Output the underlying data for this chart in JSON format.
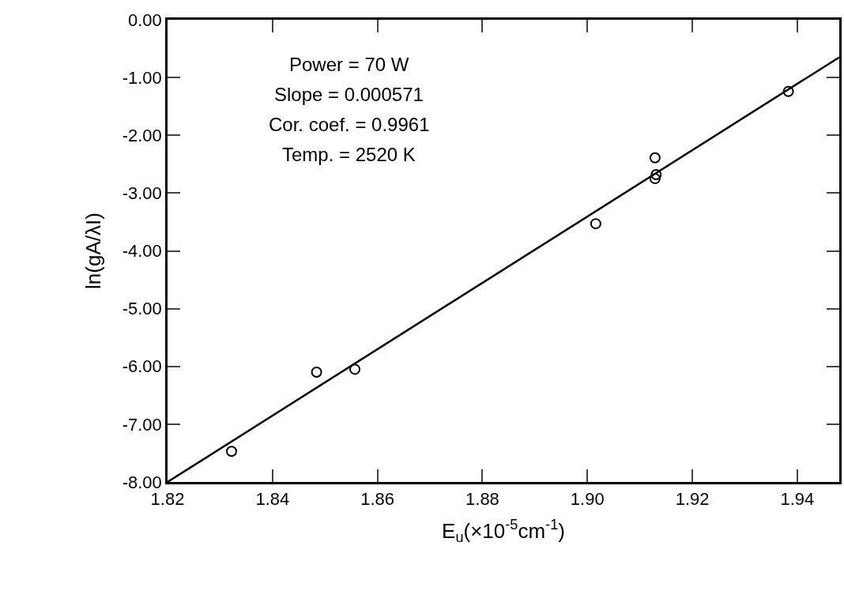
{
  "chart_data": {
    "type": "scatter",
    "xlabel": "E$_{u}$(×10$^{-5}$cm$^{-1}$)",
    "ylabel": "ln(gA/λI)",
    "annotations": [
      "Power = 70 W",
      "Slope = 0.000571",
      "Cor. coef. = 0.9961",
      "Temp. = 2520 K"
    ],
    "xlim": [
      1.82,
      1.948
    ],
    "xticks": [
      {
        "value": 1.82,
        "label": "1.82"
      },
      {
        "value": 1.84,
        "label": "1.84"
      },
      {
        "value": 1.86,
        "label": "1.86"
      },
      {
        "value": 1.88,
        "label": "1.88"
      },
      {
        "value": 1.9,
        "label": "1.90"
      },
      {
        "value": 1.92,
        "label": "1.92"
      },
      {
        "value": 1.94,
        "label": "1.94"
      }
    ],
    "ylim": [
      -8,
      0
    ],
    "yticks": [
      {
        "value": 0,
        "label": "0.00"
      },
      {
        "value": -1,
        "label": "-1.00"
      },
      {
        "value": -2,
        "label": "-2.00"
      },
      {
        "value": -3,
        "label": "-3.00"
      },
      {
        "value": -4,
        "label": "-4.00"
      },
      {
        "value": -5,
        "label": "-5.00"
      },
      {
        "value": -6,
        "label": "-6.00"
      },
      {
        "value": -7,
        "label": "-7.00"
      },
      {
        "value": -8,
        "label": "-8.00"
      }
    ],
    "series": [
      {
        "marker": "circle",
        "color": "#000000",
        "x": [
          1.8322,
          1.8484,
          1.8557,
          1.9016,
          1.9129,
          1.9131,
          1.9129,
          1.9383
        ],
        "values": [
          -7.47,
          -6.1,
          -6.05,
          -3.53,
          -2.39,
          -2.68,
          -2.75,
          -1.24
        ]
      },
      {
        "type": "line",
        "color": "#000000",
        "x": [
          1.82,
          1.948
        ],
        "values": [
          -8.0,
          -0.65
        ]
      }
    ]
  }
}
